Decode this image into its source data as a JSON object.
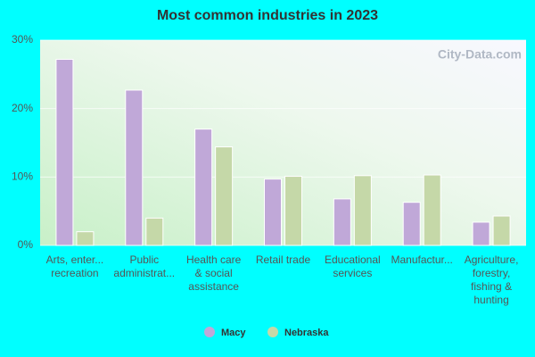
{
  "chart_data": {
    "type": "bar",
    "title": "Most common industries in 2023",
    "watermark": "City-Data.com",
    "categories": [
      [
        "Arts, enter...",
        "recreation"
      ],
      [
        "Public",
        "administrat..."
      ],
      [
        "Health care",
        "& social",
        "assistance"
      ],
      [
        "Retail trade"
      ],
      [
        "Educational",
        "services"
      ],
      [
        "Manufactur..."
      ],
      [
        "Agriculture,",
        "forestry,",
        "fishing &",
        "hunting"
      ]
    ],
    "series": [
      {
        "name": "Macy",
        "color": "#c0a8d8",
        "values": [
          27.2,
          22.7,
          17.0,
          9.7,
          6.8,
          6.3,
          3.4
        ]
      },
      {
        "name": "Nebraska",
        "color": "#c5d8a8",
        "values": [
          2.0,
          4.0,
          14.4,
          10.1,
          10.2,
          10.3,
          4.3
        ]
      }
    ],
    "ylim": [
      0,
      30
    ],
    "yticks": [
      {
        "value": 0,
        "label": "0%"
      },
      {
        "value": 10,
        "label": "10%"
      },
      {
        "value": 20,
        "label": "20%"
      },
      {
        "value": 30,
        "label": "30%"
      }
    ],
    "grid": true
  }
}
